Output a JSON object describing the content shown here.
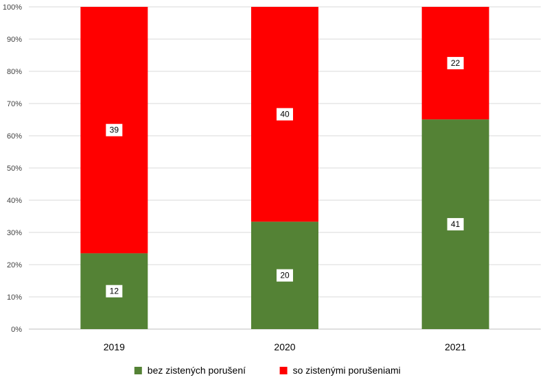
{
  "chart_data": {
    "type": "bar",
    "stacked": true,
    "normalized": true,
    "categories": [
      "2019",
      "2020",
      "2021"
    ],
    "series": [
      {
        "name": "bez zistených porušení",
        "values": [
          12,
          20,
          41
        ],
        "color": "#548235"
      },
      {
        "name": "so zistenými porušeniami",
        "values": [
          39,
          40,
          22
        ],
        "color": "#ff0000"
      }
    ],
    "y_ticks": [
      "0%",
      "10%",
      "20%",
      "30%",
      "40%",
      "50%",
      "60%",
      "70%",
      "80%",
      "90%",
      "100%"
    ],
    "ylim": [
      0,
      100
    ],
    "grid": true,
    "legend_position": "bottom",
    "title": "",
    "xlabel": "",
    "ylabel": ""
  }
}
